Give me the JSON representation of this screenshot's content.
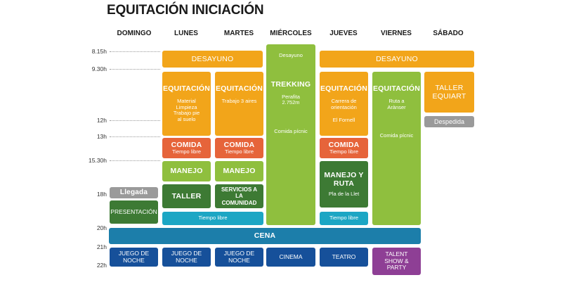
{
  "title": "EQUITACIÓN INICIACIÓN",
  "days": [
    "DOMINGO",
    "LUNES",
    "MARTES",
    "MIÉRCOLES",
    "JUEVES",
    "VIERNES",
    "SÁBADO"
  ],
  "times": [
    "8.15h",
    "9.30h",
    "12h",
    "13h",
    "15.30h",
    "18h",
    "20h",
    "21h",
    "22h"
  ],
  "blocks": {
    "desayuno_lm": "DESAYUNO",
    "desayuno_x": "Desayuno",
    "desayuno_jv": "DESAYUNO",
    "eq_lunes": {
      "title": "EQUITACIÓN",
      "l1": "Material",
      "l2": "Limpieza",
      "l3": "Trabajo pie",
      "l4": "al suelo"
    },
    "eq_martes": {
      "title": "EQUITACIÓN",
      "l1": "Trabajo 3 aires"
    },
    "trek": {
      "title": "TREKKING",
      "l1": "Perafita",
      "l2": "2.752m",
      "l3": "Comida pícnic"
    },
    "eq_jueves": {
      "title": "EQUITACIÓN",
      "l1": "Carrera de",
      "l2": "orientación",
      "l3": "El Fornell"
    },
    "eq_viernes": {
      "title": "EQUITACIÓN",
      "l1": "Ruta a",
      "l2": "Arànser",
      "l3": "Comida pícnic"
    },
    "taller_sab": {
      "l1": "TALLER",
      "l2": "EQUIART"
    },
    "despedida": "Despedida",
    "comida_lunes": {
      "title": "COMIDA",
      "sub": "Tiempo libre"
    },
    "comida_martes": {
      "title": "COMIDA",
      "sub": "Tiempo libre"
    },
    "comida_jueves": {
      "title": "COMIDA",
      "sub": "Tiempo libre"
    },
    "manejo_lunes": "MANEJO",
    "manejo_martes": "MANEJO",
    "manejo_jueves": {
      "l1": "MANEJO Y",
      "l2": "RUTA",
      "l3": "Pla de la Llet"
    },
    "llegada": "Llegada",
    "presentacion": "PRESENTACIÓN",
    "taller_lunes": "TALLER",
    "servicios": {
      "l1": "SERVICIOS A LA",
      "l2": "COMUNIDAD"
    },
    "libre_lm": "Tiempo libre",
    "libre_j": "Tiempo libre",
    "cena": "CENA",
    "juego_dom": {
      "l1": "JUEGO DE",
      "l2": "NOCHE"
    },
    "juego_lun": {
      "l1": "JUEGO DE",
      "l2": "NOCHE"
    },
    "juego_mar": {
      "l1": "JUEGO DE",
      "l2": "NOCHE"
    },
    "cinema": "CINEMA",
    "teatro": "TEATRO",
    "talent": {
      "l1": "TALENT",
      "l2": "SHOW &",
      "l3": "PARTY"
    }
  }
}
